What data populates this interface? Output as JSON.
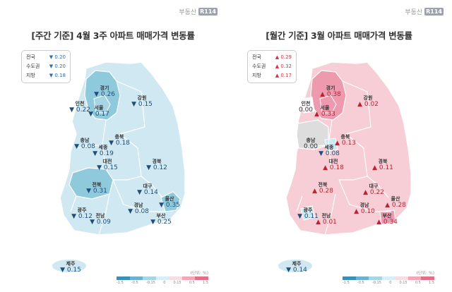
{
  "brand": {
    "text": "부동산",
    "box": "R114"
  },
  "left": {
    "title": "[주간 기준] 4월 3주 아파트 매매가격 변동률",
    "summary": [
      {
        "label": "전국",
        "value": "▼ 0.20"
      },
      {
        "label": "수도권",
        "value": "▼ 0.20"
      },
      {
        "label": "지방",
        "value": "▼ 0.18"
      }
    ],
    "regions": [
      {
        "name": "경기",
        "value": "▼ 0.26"
      },
      {
        "name": "인천",
        "value": "▼ 0.22"
      },
      {
        "name": "서울",
        "value": "▼ 0.17"
      },
      {
        "name": "강원",
        "value": "▼ 0.15"
      },
      {
        "name": "충북",
        "value": "▼ 0.18"
      },
      {
        "name": "충남",
        "value": "▼ 0.08"
      },
      {
        "name": "세종",
        "value": "▼ 0.19"
      },
      {
        "name": "대전",
        "value": "▼ 0.15"
      },
      {
        "name": "경북",
        "value": "▼ 0.12"
      },
      {
        "name": "전북",
        "value": "▼ 0.31"
      },
      {
        "name": "대구",
        "value": "▼ 0.14"
      },
      {
        "name": "울산",
        "value": "▼ 0.35"
      },
      {
        "name": "경남",
        "value": "▼ 0.08"
      },
      {
        "name": "광주",
        "value": "▼ 0.12"
      },
      {
        "name": "전남",
        "value": "▼ 0.09"
      },
      {
        "name": "부산",
        "value": "▼ 0.25"
      },
      {
        "name": "제주",
        "value": "▼ 0.15"
      }
    ],
    "legend_unit": "(단위: %)",
    "legend_ticks": [
      "-1.5",
      "-0.5",
      "-0.15",
      "0",
      "0.15",
      "0.5",
      "1.5"
    ]
  },
  "right": {
    "title": "[월간 기준] 3월 아파트 매매가격 변동률",
    "summary": [
      {
        "label": "전국",
        "value": "▲ 0.29"
      },
      {
        "label": "수도권",
        "value": "▲ 0.32"
      },
      {
        "label": "지방",
        "value": "▲ 0.17"
      }
    ],
    "regions": [
      {
        "name": "경기",
        "value": "▲ 0.38"
      },
      {
        "name": "인천",
        "value": "0.00"
      },
      {
        "name": "서울",
        "value": "▲ 0.33"
      },
      {
        "name": "강원",
        "value": "▲ 0.02"
      },
      {
        "name": "충북",
        "value": "▲ 0.13"
      },
      {
        "name": "충남",
        "value": "0.00"
      },
      {
        "name": "세종",
        "value": "▼ 0.08"
      },
      {
        "name": "대전",
        "value": "▲ 0.18"
      },
      {
        "name": "경북",
        "value": "▲ 0.11"
      },
      {
        "name": "전북",
        "value": "▲ 0.28"
      },
      {
        "name": "대구",
        "value": "▲ 0.22"
      },
      {
        "name": "울산",
        "value": "▲ 0.28"
      },
      {
        "name": "경남",
        "value": "▲ 0.10"
      },
      {
        "name": "광주",
        "value": "▼ 0.11"
      },
      {
        "name": "전남",
        "value": "▲ 0.01"
      },
      {
        "name": "부산",
        "value": "▲ 0.34"
      },
      {
        "name": "제주",
        "value": "▼ 0.14"
      }
    ],
    "legend_unit": "(단위: %)",
    "legend_ticks": [
      "-1.5",
      "-0.5",
      "-0.15",
      "0",
      "0.15",
      "0.5",
      "1.5"
    ]
  },
  "colors": {
    "weekly_base": "#cfe8f1",
    "weekly_dark": "#8fc9dc",
    "monthly_base": "#f7cdd6",
    "monthly_dark": "#ee9aae",
    "monthly_neutral": "#dddddd",
    "monthly_down": "#cfe8f1"
  }
}
